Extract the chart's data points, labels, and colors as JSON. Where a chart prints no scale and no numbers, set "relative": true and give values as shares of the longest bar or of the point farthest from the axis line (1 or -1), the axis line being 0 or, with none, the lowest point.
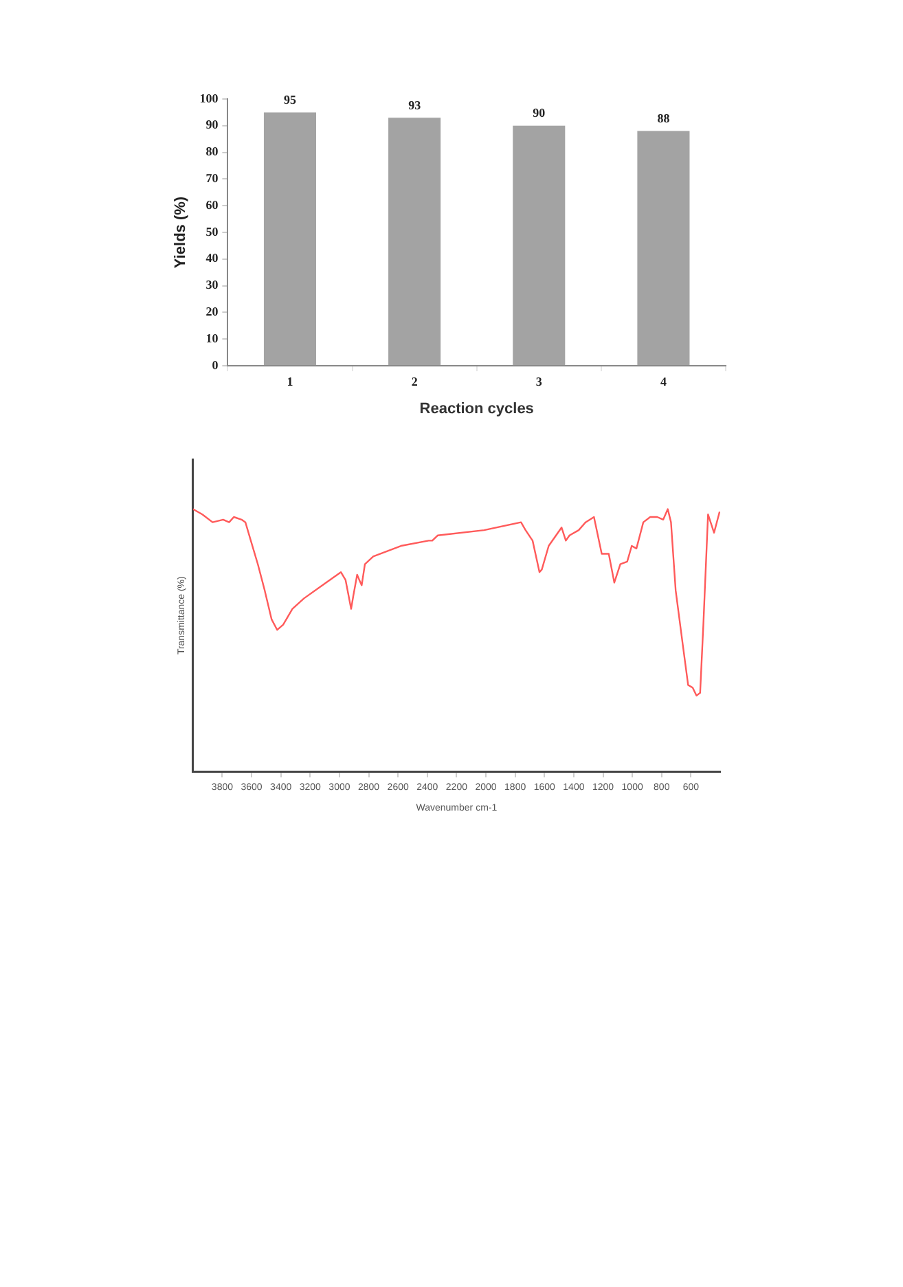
{
  "chart_data": [
    {
      "type": "bar",
      "categories": [
        "1",
        "2",
        "3",
        "4"
      ],
      "values": [
        95,
        93,
        90,
        88
      ],
      "color": "#a3a3a3",
      "xlabel": "Reaction cycles",
      "ylabel": "Yields (%)",
      "ylim": [
        0,
        100
      ],
      "yticks": [
        0,
        10,
        20,
        30,
        40,
        50,
        60,
        70,
        80,
        90,
        100
      ],
      "data_labels": true,
      "grid": false
    },
    {
      "type": "line",
      "relative": true,
      "color": "#ff5a5a",
      "marker": "none",
      "xlabel": "Wavenumber cm-1",
      "ylabel": "Transmittance (%)",
      "xlim": [
        4000,
        400
      ],
      "xticks": [
        3800,
        3600,
        3400,
        3200,
        3000,
        2800,
        2600,
        2400,
        2200,
        2000,
        1800,
        1600,
        1400,
        1200,
        1000,
        800,
        600
      ],
      "tick_labels": "x",
      "grid": false,
      "x": [
        4000,
        3936,
        3866,
        3794,
        3753,
        3721,
        3668,
        3642,
        3605,
        3557,
        3510,
        3463,
        3425,
        3384,
        3321,
        3242,
        3116,
        2990,
        2958,
        2920,
        2905,
        2879,
        2864,
        2848,
        2826,
        2769,
        2580,
        2391,
        2366,
        2328,
        2012,
        1760,
        1729,
        1681,
        1634,
        1618,
        1571,
        1483,
        1454,
        1429,
        1366,
        1319,
        1262,
        1209,
        1161,
        1123,
        1082,
        1035,
        1004,
        972,
        925,
        878,
        830,
        789,
        758,
        736,
        704,
        657,
        619,
        588,
        562,
        537,
        515,
        483,
        442,
        404
      ],
      "values": [
        1.0,
        0.98,
        0.95,
        0.96,
        0.95,
        0.97,
        0.96,
        0.95,
        0.88,
        0.79,
        0.69,
        0.58,
        0.54,
        0.56,
        0.62,
        0.66,
        0.71,
        0.76,
        0.73,
        0.62,
        0.67,
        0.75,
        0.73,
        0.71,
        0.79,
        0.82,
        0.86,
        0.88,
        0.88,
        0.9,
        0.92,
        0.95,
        0.92,
        0.88,
        0.76,
        0.77,
        0.86,
        0.93,
        0.88,
        0.9,
        0.92,
        0.95,
        0.97,
        0.83,
        0.83,
        0.72,
        0.79,
        0.8,
        0.86,
        0.85,
        0.95,
        0.97,
        0.97,
        0.96,
        1.0,
        0.95,
        0.69,
        0.49,
        0.33,
        0.32,
        0.29,
        0.3,
        0.56,
        0.98,
        0.91,
        0.99
      ]
    }
  ]
}
